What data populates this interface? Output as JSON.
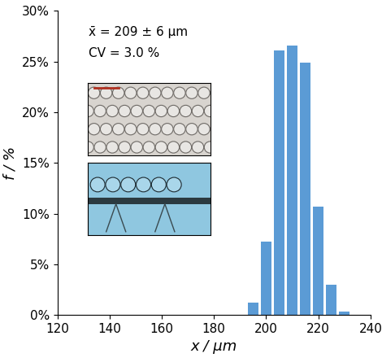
{
  "chart_data": {
    "type": "histogram",
    "annotations": [
      "x̄ = 209 ± 6 µm",
      "CV = 3.0 %"
    ],
    "x_label": "x / µm",
    "y_label": "f / %",
    "bins": [
      192.5,
      197.5,
      202.5,
      207.5,
      212.5,
      217.5,
      222.5,
      227.5,
      232.5
    ],
    "values": [
      1.2,
      7.2,
      26.1,
      26.6,
      24.9,
      10.7,
      3.0,
      0.3
    ],
    "color": "#5b9bd5",
    "xlim": [
      120,
      240
    ],
    "xticks": [
      120,
      140,
      160,
      180,
      200,
      220,
      240
    ],
    "ylim": [
      0,
      30
    ],
    "yticks": [
      {
        "value": 0,
        "label": "0%"
      },
      {
        "value": 5,
        "label": "5%"
      },
      {
        "value": 10,
        "label": "10%"
      },
      {
        "value": 15,
        "label": "15%"
      },
      {
        "value": 20,
        "label": "20%"
      },
      {
        "value": 25,
        "label": "25%"
      },
      {
        "value": 30,
        "label": "30%"
      }
    ],
    "grid": false
  }
}
